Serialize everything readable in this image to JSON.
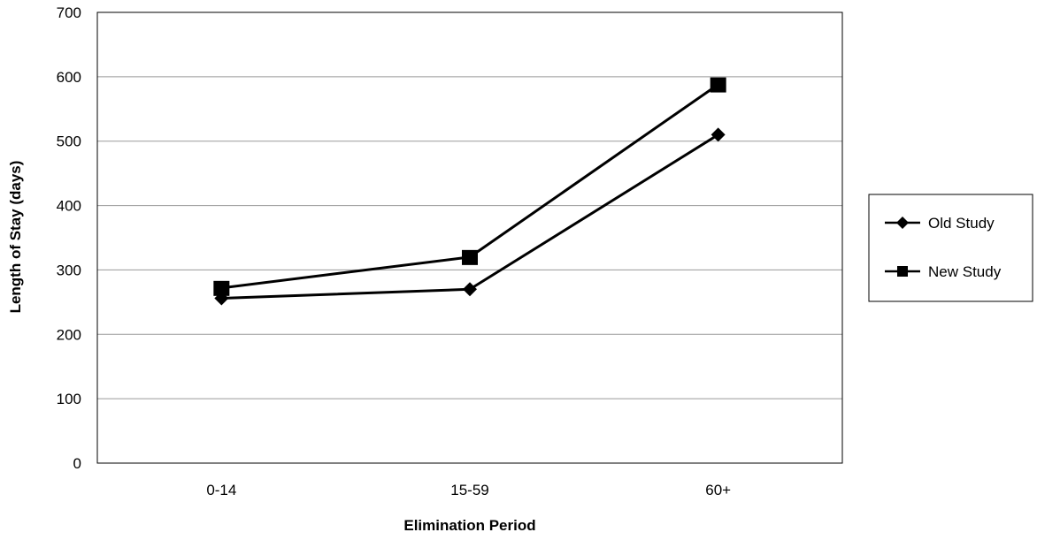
{
  "chart_data": {
    "type": "line",
    "title": "",
    "xlabel": "Elimination Period",
    "ylabel": "Length of Stay (days)",
    "categories": [
      "0-14",
      "15-59",
      "60+"
    ],
    "ylim": [
      0,
      700
    ],
    "y_ticks": [
      0,
      100,
      200,
      300,
      400,
      500,
      600,
      700
    ],
    "grid": true,
    "legend_position": "right",
    "series": [
      {
        "name": "Old Study",
        "marker": "diamond",
        "color": "#000000",
        "values": [
          256,
          270,
          510
        ]
      },
      {
        "name": "New Study",
        "marker": "square",
        "color": "#000000",
        "values": [
          272,
          320,
          588
        ]
      }
    ]
  }
}
